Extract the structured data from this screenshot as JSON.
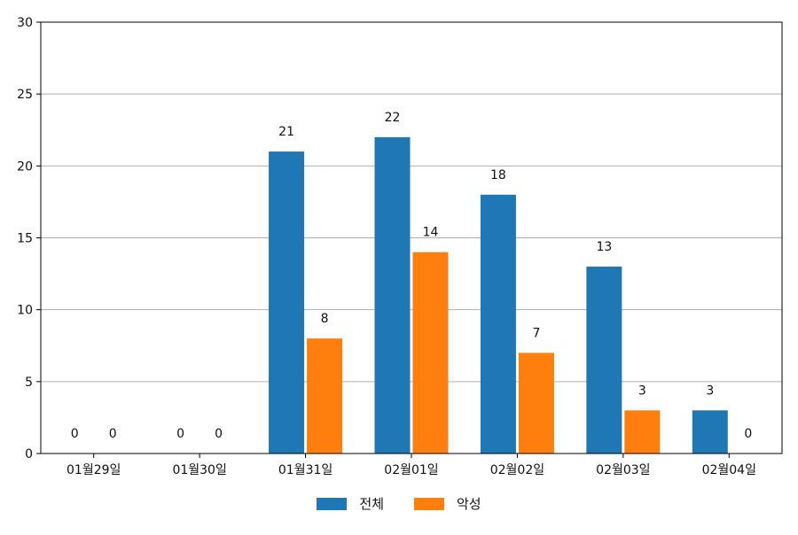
{
  "chart_data": {
    "type": "bar",
    "categories": [
      "01월29일",
      "01월30일",
      "01월31일",
      "02월01일",
      "02월02일",
      "02월03일",
      "02월04일"
    ],
    "series": [
      {
        "name": "전체",
        "values": [
          0,
          0,
          21,
          22,
          18,
          13,
          3
        ],
        "color": "#1f77b4"
      },
      {
        "name": "악성",
        "values": [
          0,
          0,
          8,
          14,
          7,
          3,
          0
        ],
        "color": "#ff7f0e"
      }
    ],
    "ylim": [
      0,
      30
    ],
    "yticks": [
      0,
      5,
      10,
      15,
      20,
      25,
      30
    ],
    "grid": true,
    "legend_position": "bottom-center"
  }
}
